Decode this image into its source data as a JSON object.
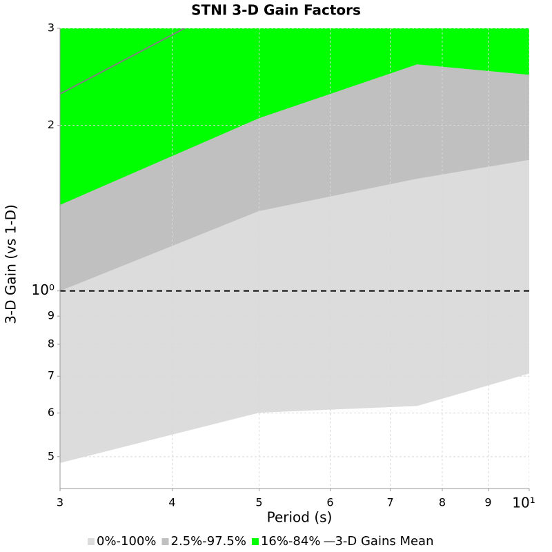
{
  "chart_data": {
    "type": "band",
    "title": "STNI 3-D Gain Factors",
    "x_label": "Period (s)",
    "y_label": "3-D Gain (vs 1-D)",
    "log_x": true,
    "log_y": true,
    "grid": true,
    "x": [
      3,
      5,
      7.5,
      10
    ],
    "series": [
      {
        "name": "0%-100%",
        "color": "#dcdcdc",
        "kind": "band",
        "values": [
          0.487,
          0.601,
          0.618,
          0.708
        ]
      },
      {
        "name": "2.5%-97.5%",
        "color": "#c0c0c0",
        "kind": "band",
        "values": [
          1.0,
          1.397,
          1.599,
          1.73
        ]
      },
      {
        "name": "16%-84%",
        "color": "#00ff00",
        "kind": "band",
        "values": [
          1.433,
          2.06,
          2.58,
          2.47
        ]
      },
      {
        "name": "3-D Gains Mean",
        "color": "#808080",
        "kind": "line",
        "x": [
          3,
          4.13
        ],
        "values": [
          2.28,
          3.0
        ]
      }
    ],
    "reference_line": 1,
    "xlim": [
      3,
      10
    ],
    "xticks": [
      3,
      4,
      5,
      6,
      7,
      8,
      9,
      {
        "value": 10,
        "label": "10¹"
      }
    ],
    "ylim": [
      0.4376,
      3
    ],
    "yticks": [
      {
        "value": 0.5,
        "label": "5"
      },
      {
        "value": 0.6,
        "label": "6"
      },
      {
        "value": 0.7,
        "label": "7"
      },
      {
        "value": 0.8,
        "label": "8"
      },
      {
        "value": 0.9,
        "label": "9"
      },
      {
        "value": 1,
        "label": "10⁰"
      },
      2,
      3
    ]
  }
}
